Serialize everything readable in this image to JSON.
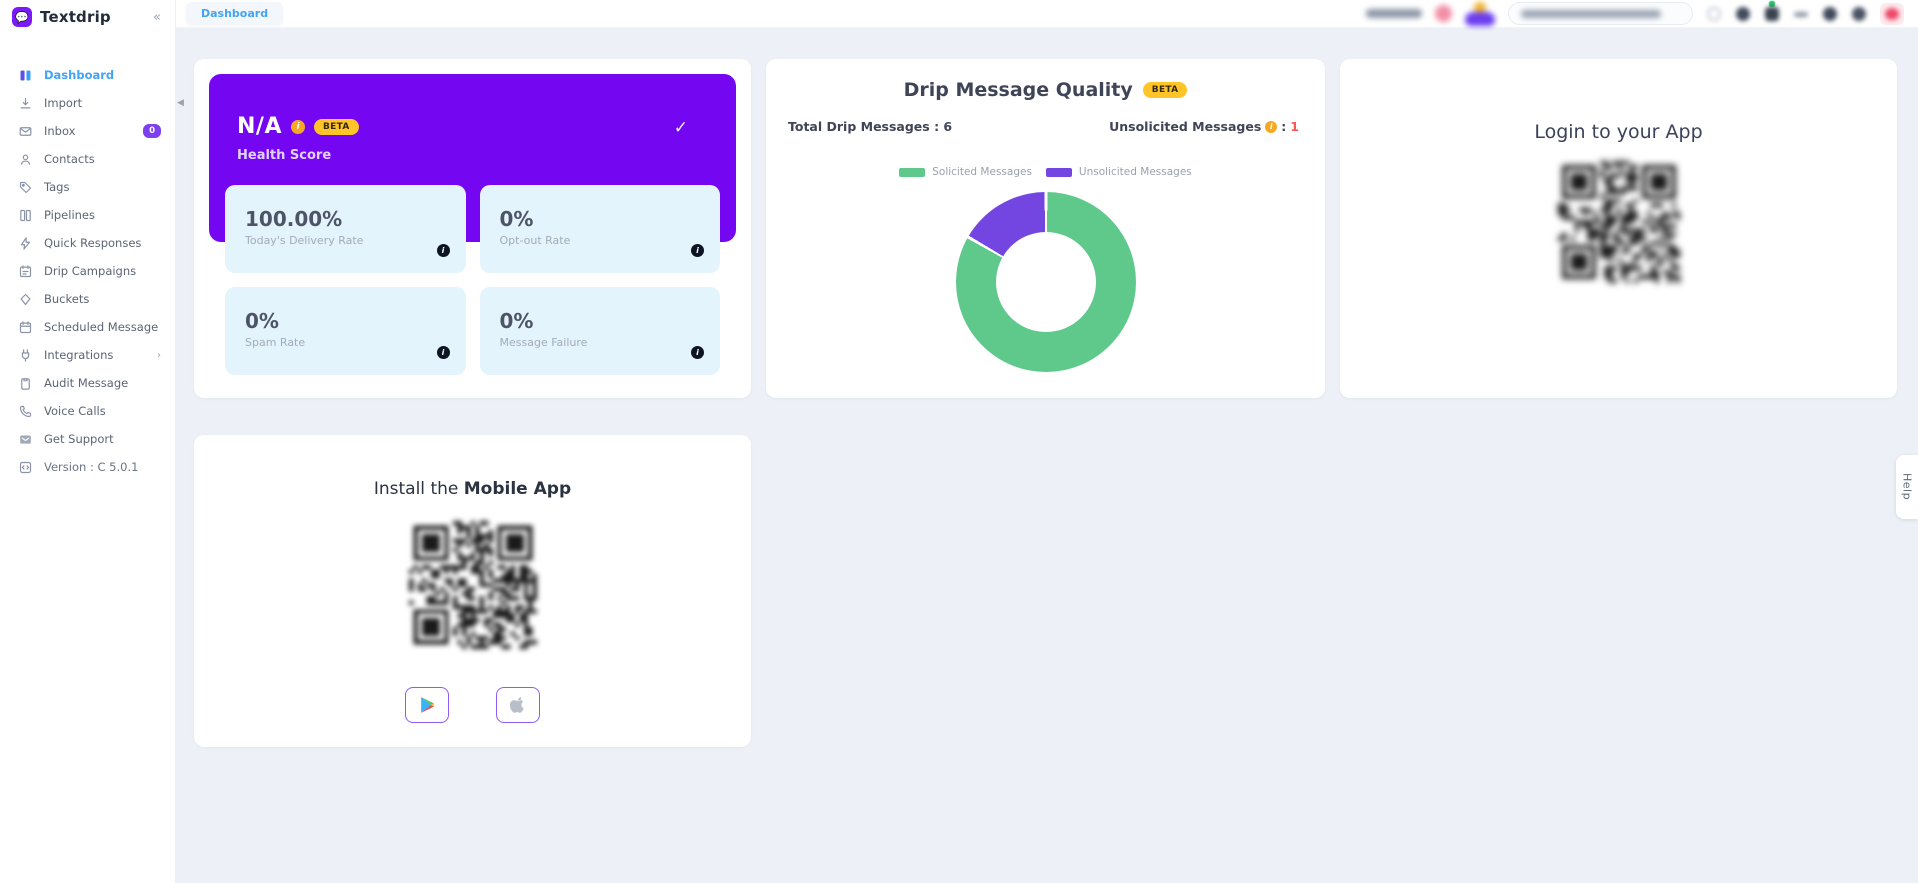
{
  "brand": {
    "name": "Textdrip"
  },
  "topbar": {
    "breadcrumb": "Dashboard",
    "icons": [
      "help-circle-icon",
      "bell-icon",
      "messages-icon",
      "more-icon",
      "user-icon",
      "settings-icon",
      "power-icon"
    ]
  },
  "sidebar": {
    "collapse_icon": "chevrons-left-icon",
    "items": [
      {
        "label": "Dashboard",
        "icon": "dashboard-icon",
        "active": true
      },
      {
        "label": "Import",
        "icon": "import-icon"
      },
      {
        "label": "Inbox",
        "icon": "inbox-icon",
        "badge": "0"
      },
      {
        "label": "Contacts",
        "icon": "contacts-icon"
      },
      {
        "label": "Tags",
        "icon": "tag-icon"
      },
      {
        "label": "Pipelines",
        "icon": "pipelines-icon"
      },
      {
        "label": "Quick Responses",
        "icon": "lightning-icon"
      },
      {
        "label": "Drip Campaigns",
        "icon": "campaign-calendar-icon"
      },
      {
        "label": "Buckets",
        "icon": "bucket-icon"
      },
      {
        "label": "Scheduled Message",
        "icon": "calendar-icon"
      },
      {
        "label": "Integrations",
        "icon": "plug-icon",
        "chevron": true
      },
      {
        "label": "Audit Message",
        "icon": "clipboard-icon"
      },
      {
        "label": "Voice Calls",
        "icon": "phone-icon"
      },
      {
        "label": "Get Support",
        "icon": "support-envelope-icon"
      },
      {
        "label": "Version : C 5.0.1",
        "icon": "version-icon",
        "muted": true
      }
    ]
  },
  "health": {
    "score": "N/A",
    "beta": "BETA",
    "title": "Health Score",
    "check_icon": "checkmark-icon",
    "stats": [
      {
        "value": "100.00%",
        "label": "Today's Delivery Rate"
      },
      {
        "value": "0%",
        "label": "Opt-out Rate"
      },
      {
        "value": "0%",
        "label": "Spam Rate"
      },
      {
        "value": "0%",
        "label": "Message Failure"
      }
    ]
  },
  "drip_quality": {
    "title": "Drip Message Quality",
    "beta": "BETA",
    "total_label": "Total Drip Messages : 6",
    "unsolicited_label": "Unsolicited Messages",
    "unsolicited_separator": " : ",
    "unsolicited_value": "1",
    "chart_data": {
      "type": "pie",
      "donut": true,
      "labels": [
        "Solicited Messages",
        "Unsolicited Messages"
      ],
      "values": [
        5,
        1
      ],
      "total": 6,
      "colors": [
        "#5fc98c",
        "#7446e1"
      ],
      "legend_position": "top",
      "start_angle_deg": 0,
      "notes": "purple (unsolicited) slice spans last 60deg, ending at 12 o'clock"
    }
  },
  "login_app": {
    "title": "Login to your App"
  },
  "mobile_app": {
    "title_prefix": "Install the ",
    "title_bold": "Mobile App",
    "stores": [
      "google-play-button",
      "app-store-button"
    ]
  },
  "help_tab": {
    "label": "Help"
  },
  "colors": {
    "brand_purple": "#7a1bf5",
    "banner_purple": "#7506f2",
    "accent_blue": "#41a4f5",
    "badge_yellow": "#ffc427",
    "stat_bg": "#e3f4fd",
    "danger_red": "#fb5757",
    "content_bg": "#edf1f7",
    "inbox_badge": "#7c3ff2"
  }
}
